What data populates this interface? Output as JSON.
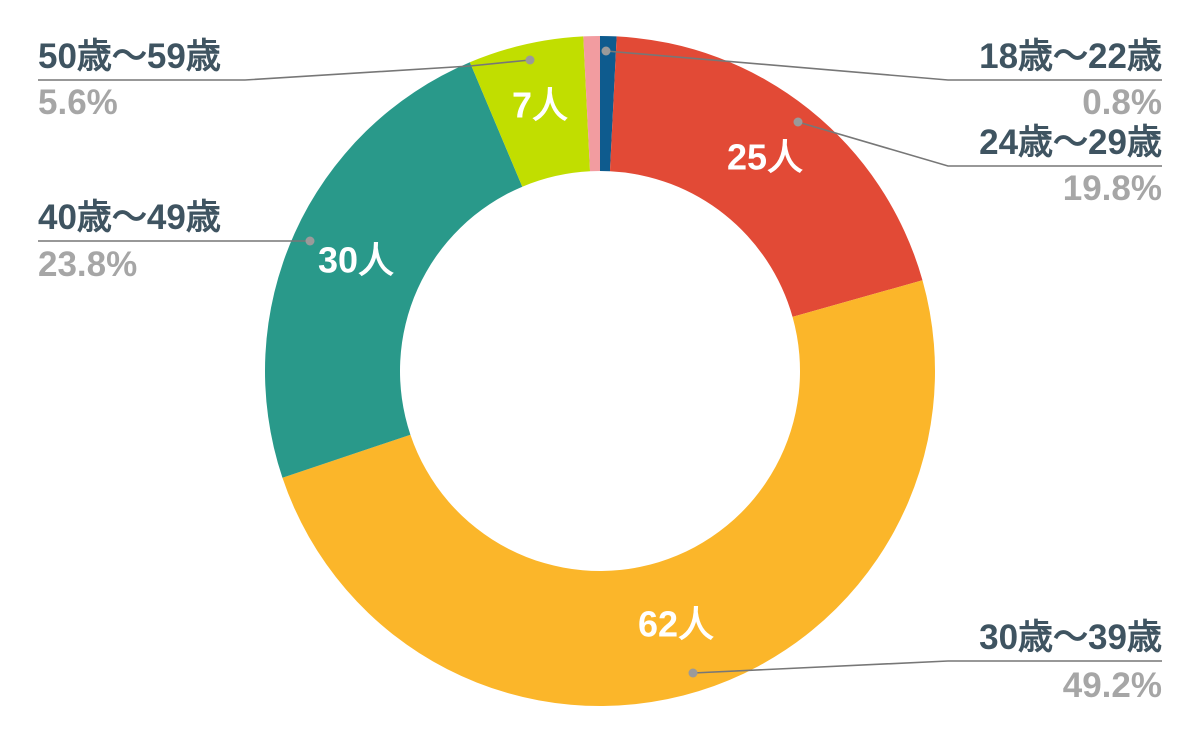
{
  "chart_data": {
    "type": "pie",
    "variant": "donut",
    "unit": "人",
    "series": [
      {
        "category": "18歳〜22歳",
        "value": 1,
        "percent_label": "0.8%",
        "color": "#0e5b8e",
        "inner_label": ""
      },
      {
        "category": "24歳〜29歳",
        "value": 25,
        "percent_label": "19.8%",
        "color": "#e24a36",
        "inner_label": "25人"
      },
      {
        "category": "30歳〜39歳",
        "value": 62,
        "percent_label": "49.2%",
        "color": "#fbb62a",
        "inner_label": "62人"
      },
      {
        "category": "40歳〜49歳",
        "value": 30,
        "percent_label": "23.8%",
        "color": "#29998a",
        "inner_label": "30人"
      },
      {
        "category": "50歳〜59歳",
        "value": 7,
        "percent_label": "5.6%",
        "color": "#c1de00",
        "inner_label": "7人"
      },
      {
        "category": "",
        "value": 1,
        "percent_label": "",
        "color": "#f29ca0",
        "inner_label": ""
      }
    ],
    "legend_placement": "leader-lines, both sides"
  }
}
